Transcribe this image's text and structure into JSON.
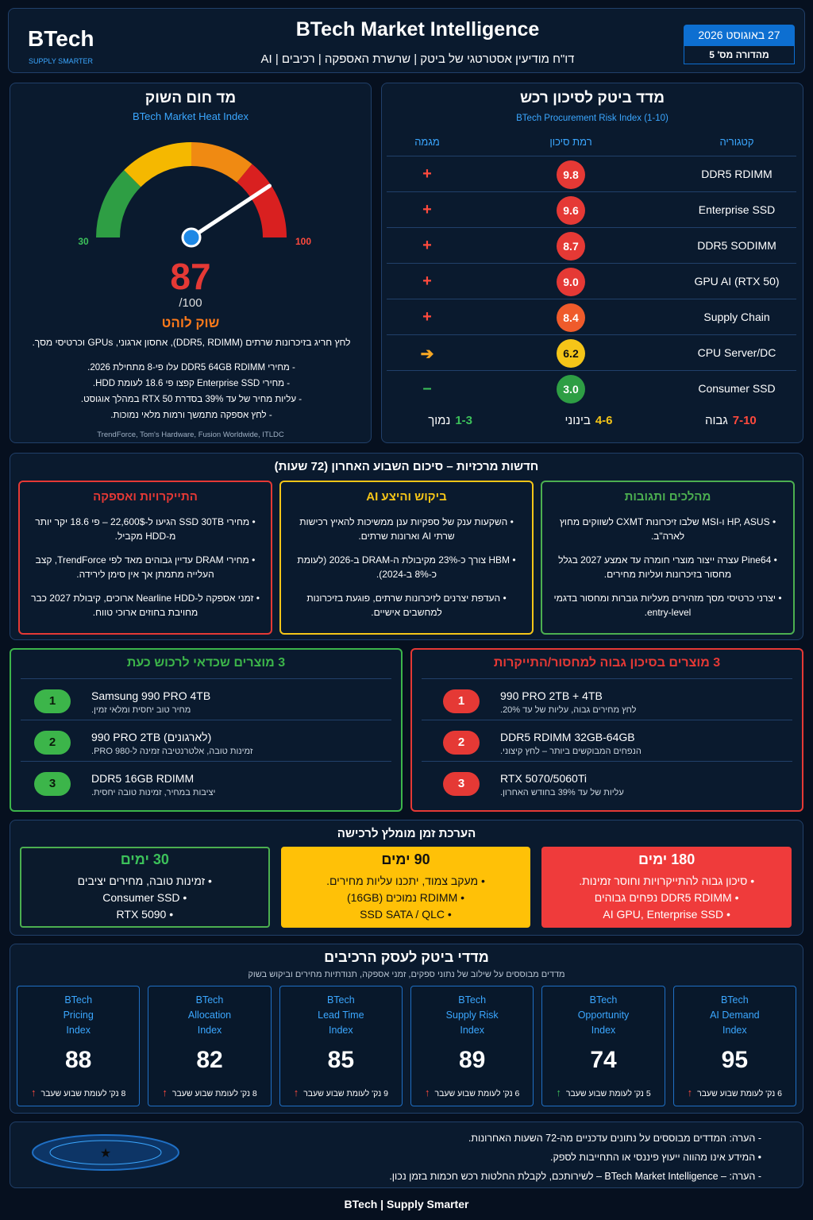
{
  "header": {
    "brand": "BTech",
    "tagline": "SUPPLY SMARTER",
    "title": "BTech Market Intelligence",
    "subtitle": "דו\"ח מודיעין אסטרטגי של ביטק | שרשרת האספקה | רכיבים | AI",
    "date": "27 באוגוסט 2026",
    "edition": "מהדורה מס' 5"
  },
  "heat": {
    "title": "מד חום השוק",
    "subtitle": "BTech Market Heat Index",
    "min": 30,
    "max": 100,
    "value": 87,
    "unit": "/100",
    "status": "שוק לוהט",
    "summary": "לחץ חריג בזיכרונות שרתים (DDR5, RDIMM), אחסון ארגוני, GPUs וכרטיסי מסך.",
    "bullets": [
      "מחירי DDR5 64GB RDIMM עלו פי-8 מתחילת 2026.",
      "מחירי Enterprise SSD קפצו פי 18.6 לעומת HDD.",
      "עליות מחיר של עד 39% בסדרת RTX 50 במהלך אוגוסט.",
      "לחץ אספקה מתמשך ורמות מלאי נמוכות."
    ],
    "sources": "TrendForce, Tom's Hardware, Fusion Worldwide, ITLDC"
  },
  "risk": {
    "title": "מדד ביטק לסיכון רכש",
    "subtitle": "BTech Procurement Risk Index (1-10)",
    "columns": [
      "קטגוריה",
      "רמת סיכון",
      "מגמה"
    ],
    "rows": [
      {
        "category": "DDR5 RDIMM",
        "score": "9.8",
        "trend": "+",
        "color": "#e53935",
        "trend_color": "#ff4a3d"
      },
      {
        "category": "Enterprise SSD",
        "score": "9.6",
        "trend": "+",
        "color": "#e53935",
        "trend_color": "#ff4a3d"
      },
      {
        "category": "DDR5 SODIMM",
        "score": "8.7",
        "trend": "+",
        "color": "#e53935",
        "trend_color": "#ff4a3d"
      },
      {
        "category": "GPU AI (RTX 50)",
        "score": "9.0",
        "trend": "+",
        "color": "#e53935",
        "trend_color": "#ff4a3d"
      },
      {
        "category": "Supply Chain",
        "score": "8.4",
        "trend": "+",
        "color": "#ef5b2b",
        "trend_color": "#ff4a3d"
      },
      {
        "category": "CPU Server/DC",
        "score": "6.2",
        "trend": "➔",
        "color": "#f5c518",
        "trend_color": "#f5a623"
      },
      {
        "category": "Consumer SSD",
        "score": "3.0",
        "trend": "–",
        "color": "#2e9e44",
        "trend_color": "#3cc15a"
      }
    ],
    "legend": [
      {
        "label": "גבוה",
        "range": "7-10",
        "color": "#ff4a3d"
      },
      {
        "label": "בינוני",
        "range": "4-6",
        "color": "#f5c518"
      },
      {
        "label": "נמוך",
        "range": "1-3",
        "color": "#3cc15a"
      }
    ]
  },
  "news": {
    "title": "חדשות מרכזיות – סיכום השבוע האחרון (72 שעות)",
    "cards": [
      {
        "title": "מהלכים ותגובות",
        "color": "#4caf50",
        "items": [
          "HP, ASUS ו-MSI שלבו זיכרונות CXMT לשווקים מחוץ לארה\"ב.",
          "Pine64 עצרה ייצור מוצרי חומרה עד אמצע 2027 בגלל מחסור בזיכרונות ועליות מחירים.",
          "יצרני כרטיסי מסך מזהירים מעליות גוברות ומחסור בדגמי entry-level."
        ]
      },
      {
        "title": "ביקוש והיצע AI",
        "color": "#f5c518",
        "items": [
          "השקעות ענק של ספקיות ענן ממשיכות להאיץ רכישות שרתי AI וארונות שרתים.",
          "HBM צורך כ-23% מקיבולת ה-DRAM ב-2026 (לעומת כ-8% ב-2024).",
          "העדפת יצרנים לזיכרונות שרתים, פוגעת בזיכרונות למחשבים אישיים."
        ]
      },
      {
        "title": "התייקרויות ואספקה",
        "color": "#e53935",
        "items": [
          "מחירי SSD 30TB הגיעו ל-22,600$ – פי 18.6 יקר יותר מ-HDD מקביל.",
          "מחירי DRAM עדיין גבוהים מאד לפי TrendForce, קצב העלייה מתמתן אך אין סימן לירידה.",
          "זמני אספקה ל-Nearline HDD ארוכים, קיבולת 2027 כבר מחויבת בחוזים ארוכי טווח."
        ]
      }
    ]
  },
  "products": [
    {
      "title": "3 מוצרים בסיכון גבוה למחסור/התייקרות",
      "color": "#e53935",
      "items": [
        {
          "rank": "1",
          "name": "990 PRO 2TB + 4TB",
          "note": "לחץ מחירים גבוה, עליות של עד 20%."
        },
        {
          "rank": "2",
          "name": "DDR5 RDIMM 32GB-64GB",
          "note": "הנפחים המבוקשים ביותר – לחץ קיצוני."
        },
        {
          "rank": "3",
          "name": "RTX 5070/5060Ti",
          "note": "עליות של עד 39% בחודש האחרון."
        }
      ]
    },
    {
      "title": "3 מוצרים שכדאי לרכוש כעת",
      "color": "#3cb54a",
      "items": [
        {
          "rank": "1",
          "name": "Samsung 990 PRO 4TB",
          "note": "מחיר טוב יחסית ומלאי זמין."
        },
        {
          "rank": "2",
          "name": "990 PRO 2TB (לארגונים)",
          "note": "זמינות טובה, אלטרנטיבה זמינה ל-980 PRO."
        },
        {
          "rank": "3",
          "name": "DDR5 16GB RDIMM",
          "note": "יציבות במחיר, זמינות טובה יחסית."
        }
      ]
    }
  ],
  "timing": {
    "title": "הערכת זמן מומלץ לרכישה",
    "cards": [
      {
        "days": "180 ימים",
        "bg": "#ef3b3b",
        "fg": "#ffffff",
        "items": [
          "סיכון גבוה להתייקרויות וחוסר זמינות.",
          "DDR5 RDIMM נפחים גבוהים",
          "AI GPU, Enterprise SSD"
        ]
      },
      {
        "days": "90 ימים",
        "bg": "#ffc107",
        "fg": "#111111",
        "items": [
          "מעקב צמוד, יתכנו עליות מחירים.",
          "RDIMM נמוכים (16GB)",
          "SSD SATA / QLC"
        ]
      },
      {
        "days": "30 ימים",
        "bg": "#0b1a2c",
        "fg": "#ffffff",
        "items": [
          "זמינות טובה, מחירים יציבים",
          "Consumer SSD",
          "RTX 5090"
        ]
      }
    ]
  },
  "indices": {
    "title": "מדדי ביטק לעסק הרכיבים",
    "subtitle": "מדדים מבוססים על שילוב של נתוני ספקים, זמני אספקה, תנודתיות מחירים וביקוש בשוק",
    "items": [
      {
        "name": [
          "BTech",
          "AI Demand",
          "Index"
        ],
        "value": 95,
        "arrow": "↑",
        "arrow_color": "#ff4a3d",
        "change": "6 נק' לעומת שבוע שעבר"
      },
      {
        "name": [
          "BTech",
          "Opportunity",
          "Index"
        ],
        "value": 74,
        "arrow": "↑",
        "arrow_color": "#3cc15a",
        "change": "5 נק' לעומת שבוע שעבר"
      },
      {
        "name": [
          "BTech",
          "Supply Risk",
          "Index"
        ],
        "value": 89,
        "arrow": "↑",
        "arrow_color": "#ff4a3d",
        "change": "6 נק' לעומת שבוע שעבר"
      },
      {
        "name": [
          "BTech",
          "Lead Time",
          "Index"
        ],
        "value": 85,
        "arrow": "↑",
        "arrow_color": "#ff4a3d",
        "change": "9 נק' לעומת שבוע שעבר"
      },
      {
        "name": [
          "BTech",
          "Allocation",
          "Index"
        ],
        "value": 82,
        "arrow": "↑",
        "arrow_color": "#ff4a3d",
        "change": "8 נק' לעומת שבוע שעבר"
      },
      {
        "name": [
          "BTech",
          "Pricing",
          "Index"
        ],
        "value": 88,
        "arrow": "↑",
        "arrow_color": "#ff4a3d",
        "change": "8 נק' לעומת שבוע שעבר"
      }
    ]
  },
  "notes": [
    "הערה: המדדים מבוססים על נתונים עדכניים מה-72 השעות האחרונות.",
    "המידע אינו מהווה ייעוץ פיננסי או התחייבות לספק.",
    "הערה: – BTech Market Intelligence – לשירותכם, לקבלת החלטות רכש חכמות בזמן נכון."
  ],
  "footer": "BTech | Supply Smarter"
}
